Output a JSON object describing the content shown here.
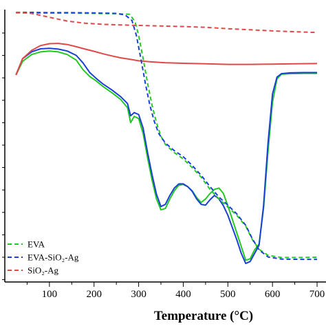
{
  "chart_data": {
    "type": "line",
    "xlabel": "Temperature (°C)",
    "xlim": [
      0,
      720
    ],
    "x_ticks": [
      100,
      200,
      300,
      400,
      500,
      600,
      700
    ],
    "y_tick_count": 12,
    "y_labels_visible": false,
    "grid": false,
    "legend_position": "bottom-left",
    "series": [
      {
        "name": "EVA",
        "style": "solid",
        "color": "#22c922",
        "points": [
          [
            25,
            0.76
          ],
          [
            40,
            0.81
          ],
          [
            60,
            0.835
          ],
          [
            80,
            0.845
          ],
          [
            100,
            0.848
          ],
          [
            120,
            0.845
          ],
          [
            140,
            0.835
          ],
          [
            160,
            0.815
          ],
          [
            175,
            0.78
          ],
          [
            190,
            0.755
          ],
          [
            205,
            0.738
          ],
          [
            220,
            0.718
          ],
          [
            240,
            0.695
          ],
          [
            260,
            0.67
          ],
          [
            275,
            0.64
          ],
          [
            282,
            0.585
          ],
          [
            290,
            0.608
          ],
          [
            300,
            0.6
          ],
          [
            310,
            0.545
          ],
          [
            320,
            0.455
          ],
          [
            330,
            0.375
          ],
          [
            340,
            0.305
          ],
          [
            350,
            0.265
          ],
          [
            360,
            0.27
          ],
          [
            370,
            0.305
          ],
          [
            380,
            0.335
          ],
          [
            390,
            0.355
          ],
          [
            400,
            0.358
          ],
          [
            410,
            0.35
          ],
          [
            420,
            0.335
          ],
          [
            430,
            0.31
          ],
          [
            440,
            0.292
          ],
          [
            450,
            0.305
          ],
          [
            460,
            0.325
          ],
          [
            470,
            0.34
          ],
          [
            480,
            0.345
          ],
          [
            490,
            0.325
          ],
          [
            500,
            0.28
          ],
          [
            510,
            0.23
          ],
          [
            520,
            0.18
          ],
          [
            530,
            0.13
          ],
          [
            540,
            0.08
          ],
          [
            550,
            0.085
          ],
          [
            560,
            0.118
          ],
          [
            570,
            0.14
          ],
          [
            580,
            0.27
          ],
          [
            590,
            0.48
          ],
          [
            600,
            0.66
          ],
          [
            610,
            0.745
          ],
          [
            620,
            0.763
          ],
          [
            640,
            0.765
          ],
          [
            670,
            0.766
          ],
          [
            700,
            0.766
          ]
        ]
      },
      {
        "name": "EVA-SiO₂-Ag",
        "style": "solid",
        "color": "#1a3fd6",
        "points": [
          [
            25,
            0.76
          ],
          [
            40,
            0.82
          ],
          [
            60,
            0.845
          ],
          [
            80,
            0.856
          ],
          [
            100,
            0.858
          ],
          [
            120,
            0.855
          ],
          [
            140,
            0.848
          ],
          [
            160,
            0.832
          ],
          [
            175,
            0.805
          ],
          [
            190,
            0.77
          ],
          [
            205,
            0.747
          ],
          [
            220,
            0.727
          ],
          [
            240,
            0.705
          ],
          [
            260,
            0.68
          ],
          [
            275,
            0.655
          ],
          [
            282,
            0.61
          ],
          [
            290,
            0.622
          ],
          [
            300,
            0.615
          ],
          [
            310,
            0.565
          ],
          [
            320,
            0.475
          ],
          [
            330,
            0.395
          ],
          [
            340,
            0.322
          ],
          [
            350,
            0.277
          ],
          [
            360,
            0.285
          ],
          [
            370,
            0.318
          ],
          [
            380,
            0.345
          ],
          [
            390,
            0.36
          ],
          [
            400,
            0.36
          ],
          [
            410,
            0.35
          ],
          [
            420,
            0.333
          ],
          [
            430,
            0.305
          ],
          [
            440,
            0.285
          ],
          [
            450,
            0.282
          ],
          [
            460,
            0.302
          ],
          [
            470,
            0.318
          ],
          [
            480,
            0.305
          ],
          [
            490,
            0.28
          ],
          [
            500,
            0.245
          ],
          [
            510,
            0.2
          ],
          [
            520,
            0.155
          ],
          [
            530,
            0.105
          ],
          [
            540,
            0.068
          ],
          [
            550,
            0.075
          ],
          [
            560,
            0.105
          ],
          [
            570,
            0.135
          ],
          [
            580,
            0.28
          ],
          [
            590,
            0.51
          ],
          [
            600,
            0.69
          ],
          [
            610,
            0.752
          ],
          [
            620,
            0.765
          ],
          [
            640,
            0.768
          ],
          [
            670,
            0.769
          ],
          [
            700,
            0.769
          ]
        ]
      },
      {
        "name": "SiO₂-Ag",
        "style": "solid",
        "color": "#e04848",
        "points": [
          [
            25,
            0.76
          ],
          [
            40,
            0.82
          ],
          [
            60,
            0.85
          ],
          [
            80,
            0.868
          ],
          [
            100,
            0.875
          ],
          [
            120,
            0.876
          ],
          [
            140,
            0.872
          ],
          [
            160,
            0.864
          ],
          [
            180,
            0.855
          ],
          [
            200,
            0.847
          ],
          [
            220,
            0.838
          ],
          [
            240,
            0.83
          ],
          [
            260,
            0.823
          ],
          [
            280,
            0.818
          ],
          [
            300,
            0.812
          ],
          [
            330,
            0.808
          ],
          [
            360,
            0.805
          ],
          [
            400,
            0.803
          ],
          [
            450,
            0.801
          ],
          [
            500,
            0.799
          ],
          [
            550,
            0.799
          ],
          [
            600,
            0.8
          ],
          [
            650,
            0.801
          ],
          [
            700,
            0.802
          ]
        ]
      },
      {
        "name": "EVA",
        "style": "dashed",
        "color": "#22c922",
        "points": [
          [
            25,
            0.988
          ],
          [
            60,
            0.988
          ],
          [
            100,
            0.987
          ],
          [
            150,
            0.987
          ],
          [
            200,
            0.986
          ],
          [
            250,
            0.985
          ],
          [
            280,
            0.983
          ],
          [
            292,
            0.955
          ],
          [
            300,
            0.905
          ],
          [
            310,
            0.82
          ],
          [
            320,
            0.73
          ],
          [
            330,
            0.65
          ],
          [
            340,
            0.585
          ],
          [
            350,
            0.535
          ],
          [
            360,
            0.505
          ],
          [
            380,
            0.475
          ],
          [
            400,
            0.452
          ],
          [
            420,
            0.42
          ],
          [
            440,
            0.385
          ],
          [
            460,
            0.34
          ],
          [
            480,
            0.305
          ],
          [
            500,
            0.275
          ],
          [
            520,
            0.245
          ],
          [
            540,
            0.205
          ],
          [
            555,
            0.155
          ],
          [
            570,
            0.12
          ],
          [
            590,
            0.098
          ],
          [
            620,
            0.09
          ],
          [
            660,
            0.09
          ],
          [
            700,
            0.091
          ]
        ]
      },
      {
        "name": "EVA-SiO₂-Ag",
        "style": "dashed",
        "color": "#1a3fd6",
        "points": [
          [
            25,
            0.99
          ],
          [
            60,
            0.99
          ],
          [
            100,
            0.989
          ],
          [
            150,
            0.989
          ],
          [
            200,
            0.988
          ],
          [
            250,
            0.986
          ],
          [
            270,
            0.98
          ],
          [
            285,
            0.96
          ],
          [
            295,
            0.905
          ],
          [
            305,
            0.82
          ],
          [
            315,
            0.73
          ],
          [
            325,
            0.65
          ],
          [
            335,
            0.59
          ],
          [
            345,
            0.545
          ],
          [
            360,
            0.51
          ],
          [
            380,
            0.482
          ],
          [
            400,
            0.46
          ],
          [
            420,
            0.428
          ],
          [
            440,
            0.392
          ],
          [
            460,
            0.35
          ],
          [
            480,
            0.312
          ],
          [
            500,
            0.282
          ],
          [
            520,
            0.25
          ],
          [
            540,
            0.208
          ],
          [
            555,
            0.158
          ],
          [
            570,
            0.118
          ],
          [
            590,
            0.092
          ],
          [
            620,
            0.084
          ],
          [
            660,
            0.083
          ],
          [
            700,
            0.083
          ]
        ]
      },
      {
        "name": "SiO₂-Ag",
        "style": "dashed",
        "color": "#e04848",
        "points": [
          [
            25,
            0.99
          ],
          [
            60,
            0.986
          ],
          [
            100,
            0.972
          ],
          [
            140,
            0.958
          ],
          [
            180,
            0.95
          ],
          [
            220,
            0.946
          ],
          [
            260,
            0.944
          ],
          [
            300,
            0.942
          ],
          [
            350,
            0.94
          ],
          [
            400,
            0.938
          ],
          [
            450,
            0.935
          ],
          [
            500,
            0.93
          ],
          [
            550,
            0.926
          ],
          [
            600,
            0.922
          ],
          [
            650,
            0.919
          ],
          [
            700,
            0.916
          ]
        ]
      }
    ],
    "legend": [
      {
        "label": "EVA",
        "color": "#22c922",
        "style": "dashed"
      },
      {
        "label": "EVA-SiO₂-Ag",
        "color": "#1a3fd6",
        "style": "dashed"
      },
      {
        "label": "SiO₂-Ag",
        "color": "#e04848",
        "style": "dashed"
      }
    ]
  }
}
